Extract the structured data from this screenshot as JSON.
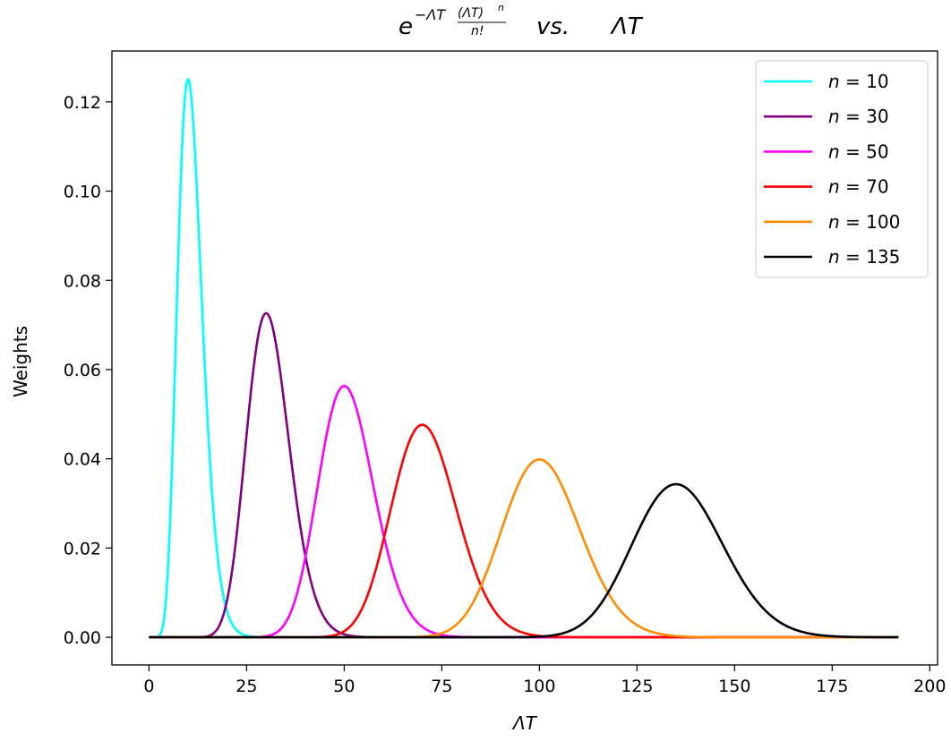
{
  "chart_data": {
    "type": "line",
    "title": {
      "prefix": "e",
      "exp_main": "−ΛT",
      "exp_num": "(ΛT)",
      "exp_num_pow": "n",
      "exp_den": "n!",
      "vs": "vs.",
      "rhs": "ΛT"
    },
    "xlabel": "ΛT",
    "ylabel": "Weights",
    "xlim": [
      -9.5,
      202
    ],
    "ylim": [
      -0.0062,
      0.1314
    ],
    "xticks": [
      0,
      25,
      50,
      75,
      100,
      125,
      150,
      175,
      200
    ],
    "yticks": [
      0.0,
      0.02,
      0.04,
      0.06,
      0.08,
      0.1,
      0.12
    ],
    "xtick_labels": [
      "0",
      "25",
      "50",
      "75",
      "100",
      "125",
      "150",
      "175",
      "200"
    ],
    "ytick_labels": [
      "0.00",
      "0.02",
      "0.04",
      "0.06",
      "0.08",
      "0.10",
      "0.12"
    ],
    "x_range": [
      0,
      192
    ],
    "grid": false,
    "legend_position": "top-right",
    "series": [
      {
        "name": "n = 10",
        "n": 10,
        "color": "#00ffff",
        "label_var": "n",
        "label_val": "10"
      },
      {
        "name": "n = 30",
        "n": 30,
        "color": "#800080",
        "label_var": "n",
        "label_val": "30"
      },
      {
        "name": "n = 50",
        "n": 50,
        "color": "#ff00ff",
        "label_var": "n",
        "label_val": "50"
      },
      {
        "name": "n = 70",
        "n": 70,
        "color": "#ff0000",
        "label_var": "n",
        "label_val": "70"
      },
      {
        "name": "n = 100",
        "n": 100,
        "color": "#ff8c00",
        "label_var": "n",
        "label_val": "100"
      },
      {
        "name": "n = 135",
        "n": 135,
        "color": "#000000",
        "label_var": "n",
        "label_val": "135"
      }
    ]
  }
}
